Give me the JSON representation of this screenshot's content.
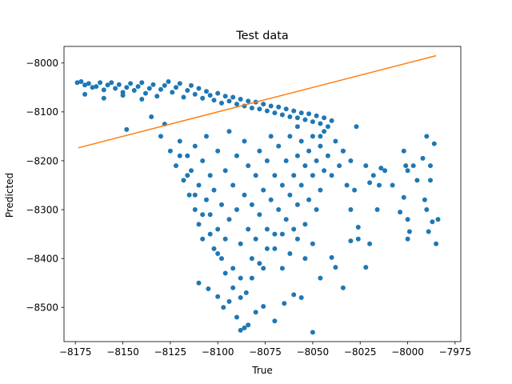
{
  "chart_data": {
    "type": "scatter",
    "title": "Test data",
    "xlabel": "True",
    "ylabel": "Predicted",
    "xlim": [
      -8181,
      -7972
    ],
    "ylim": [
      -8570,
      -7966
    ],
    "x_ticks": [
      -8175,
      -8150,
      -8125,
      -8100,
      -8075,
      -8050,
      -8025,
      -8000,
      -7975
    ],
    "x_tick_labels": [
      "−8175",
      "−8150",
      "−8125",
      "−8100",
      "−8075",
      "−8050",
      "−8025",
      "−8000",
      "−7975"
    ],
    "y_ticks": [
      -8500,
      -8400,
      -8300,
      -8200,
      -8100,
      -8000
    ],
    "y_tick_labels": [
      "−8500",
      "−8400",
      "−8300",
      "−8200",
      "−8100",
      "−8000"
    ],
    "grid": false,
    "series": [
      {
        "kind": "points",
        "color": "#1f77b4",
        "points": [
          [
            -8174,
            -8040
          ],
          [
            -8172,
            -8038
          ],
          [
            -8170,
            -8045
          ],
          [
            -8168,
            -8042
          ],
          [
            -8166,
            -8050
          ],
          [
            -8164,
            -8048
          ],
          [
            -8162,
            -8040
          ],
          [
            -8160,
            -8055
          ],
          [
            -8158,
            -8045
          ],
          [
            -8156,
            -8040
          ],
          [
            -8154,
            -8052
          ],
          [
            -8152,
            -8044
          ],
          [
            -8150,
            -8060
          ],
          [
            -8148,
            -8050
          ],
          [
            -8146,
            -8042
          ],
          [
            -8144,
            -8056
          ],
          [
            -8142,
            -8048
          ],
          [
            -8140,
            -8040
          ],
          [
            -8138,
            -8062
          ],
          [
            -8136,
            -8052
          ],
          [
            -8134,
            -8044
          ],
          [
            -8132,
            -8068
          ],
          [
            -8130,
            -8054
          ],
          [
            -8128,
            -8046
          ],
          [
            -8126,
            -8038
          ],
          [
            -8124,
            -8060
          ],
          [
            -8122,
            -8050
          ],
          [
            -8120,
            -8042
          ],
          [
            -8118,
            -8070
          ],
          [
            -8116,
            -8056
          ],
          [
            -8114,
            -8046
          ],
          [
            -8112,
            -8064
          ],
          [
            -8110,
            -8052
          ],
          [
            -8108,
            -8072
          ],
          [
            -8106,
            -8058
          ],
          [
            -8104,
            -8066
          ],
          [
            -8102,
            -8076
          ],
          [
            -8100,
            -8062
          ],
          [
            -8098,
            -8082
          ],
          [
            -8096,
            -8068
          ],
          [
            -8094,
            -8078
          ],
          [
            -8092,
            -8070
          ],
          [
            -8090,
            -8084
          ],
          [
            -8088,
            -8074
          ],
          [
            -8086,
            -8088
          ],
          [
            -8084,
            -8078
          ],
          [
            -8082,
            -8092
          ],
          [
            -8080,
            -8080
          ],
          [
            -8078,
            -8094
          ],
          [
            -8076,
            -8084
          ],
          [
            -8074,
            -8098
          ],
          [
            -8072,
            -8088
          ],
          [
            -8070,
            -8102
          ],
          [
            -8068,
            -8090
          ],
          [
            -8066,
            -8106
          ],
          [
            -8064,
            -8094
          ],
          [
            -8062,
            -8110
          ],
          [
            -8060,
            -8098
          ],
          [
            -8058,
            -8112
          ],
          [
            -8056,
            -8102
          ],
          [
            -8054,
            -8116
          ],
          [
            -8052,
            -8104
          ],
          [
            -8050,
            -8120
          ],
          [
            -8048,
            -8108
          ],
          [
            -8046,
            -8124
          ],
          [
            -8044,
            -8112
          ],
          [
            -8042,
            -8130
          ],
          [
            -8040,
            -8118
          ],
          [
            -8170,
            -8064
          ],
          [
            -8160,
            -8072
          ],
          [
            -8150,
            -8066
          ],
          [
            -8140,
            -8074
          ],
          [
            -8148,
            -8136
          ],
          [
            -8135,
            -8110
          ],
          [
            -8130,
            -8150
          ],
          [
            -8128,
            -8125
          ],
          [
            -8125,
            -8180
          ],
          [
            -8122,
            -8210
          ],
          [
            -8120,
            -8160
          ],
          [
            -8118,
            -8240
          ],
          [
            -8116,
            -8190
          ],
          [
            -8115,
            -8270
          ],
          [
            -8114,
            -8220
          ],
          [
            -8112,
            -8300
          ],
          [
            -8112,
            -8170
          ],
          [
            -8110,
            -8250
          ],
          [
            -8110,
            -8330
          ],
          [
            -8108,
            -8200
          ],
          [
            -8108,
            -8360
          ],
          [
            -8106,
            -8280
          ],
          [
            -8106,
            -8150
          ],
          [
            -8104,
            -8310
          ],
          [
            -8104,
            -8230
          ],
          [
            -8102,
            -8380
          ],
          [
            -8102,
            -8260
          ],
          [
            -8100,
            -8340
          ],
          [
            -8100,
            -8180
          ],
          [
            -8098,
            -8290
          ],
          [
            -8098,
            -8400
          ],
          [
            -8096,
            -8220
          ],
          [
            -8096,
            -8360
          ],
          [
            -8094,
            -8320
          ],
          [
            -8094,
            -8140
          ],
          [
            -8092,
            -8250
          ],
          [
            -8092,
            -8420
          ],
          [
            -8090,
            -8300
          ],
          [
            -8090,
            -8190
          ],
          [
            -8088,
            -8370
          ],
          [
            -8088,
            -8440
          ],
          [
            -8086,
            -8270
          ],
          [
            -8086,
            -8160
          ],
          [
            -8084,
            -8340
          ],
          [
            -8084,
            -8210
          ],
          [
            -8082,
            -8400
          ],
          [
            -8082,
            -8290
          ],
          [
            -8080,
            -8230
          ],
          [
            -8080,
            -8360
          ],
          [
            -8078,
            -8180
          ],
          [
            -8078,
            -8310
          ],
          [
            -8076,
            -8260
          ],
          [
            -8076,
            -8420
          ],
          [
            -8074,
            -8200
          ],
          [
            -8074,
            -8340
          ],
          [
            -8072,
            -8150
          ],
          [
            -8072,
            -8280
          ],
          [
            -8070,
            -8380
          ],
          [
            -8070,
            -8230
          ],
          [
            -8068,
            -8300
          ],
          [
            -8068,
            -8170
          ],
          [
            -8066,
            -8250
          ],
          [
            -8066,
            -8350
          ],
          [
            -8064,
            -8200
          ],
          [
            -8064,
            -8320
          ],
          [
            -8062,
            -8270
          ],
          [
            -8062,
            -8150
          ],
          [
            -8060,
            -8230
          ],
          [
            -8060,
            -8340
          ],
          [
            -8058,
            -8190
          ],
          [
            -8058,
            -8290
          ],
          [
            -8056,
            -8250
          ],
          [
            -8056,
            -8160
          ],
          [
            -8054,
            -8210
          ],
          [
            -8054,
            -8330
          ],
          [
            -8052,
            -8180
          ],
          [
            -8052,
            -8280
          ],
          [
            -8050,
            -8230
          ],
          [
            -8050,
            -8150
          ],
          [
            -8048,
            -8200
          ],
          [
            -8048,
            -8300
          ],
          [
            -8046,
            -8170
          ],
          [
            -8046,
            -8260
          ],
          [
            -8044,
            -8220
          ],
          [
            -8044,
            -8140
          ],
          [
            -8042,
            -8190
          ],
          [
            -8040,
            -8230
          ],
          [
            -8038,
            -8160
          ],
          [
            -8036,
            -8210
          ],
          [
            -8034,
            -8180
          ],
          [
            -8032,
            -8250
          ],
          [
            -8030,
            -8200
          ],
          [
            -8030,
            -8300
          ],
          [
            -8028,
            -8260
          ],
          [
            -8120,
            -8190
          ],
          [
            -8116,
            -8230
          ],
          [
            -8112,
            -8270
          ],
          [
            -8108,
            -8310
          ],
          [
            -8104,
            -8350
          ],
          [
            -8100,
            -8390
          ],
          [
            -8096,
            -8430
          ],
          [
            -8092,
            -8460
          ],
          [
            -8088,
            -8480
          ],
          [
            -8085,
            -8470
          ],
          [
            -8082,
            -8440
          ],
          [
            -8078,
            -8410
          ],
          [
            -8074,
            -8380
          ],
          [
            -8070,
            -8350
          ],
          [
            -8066,
            -8420
          ],
          [
            -8062,
            -8390
          ],
          [
            -8058,
            -8360
          ],
          [
            -8054,
            -8400
          ],
          [
            -8050,
            -8370
          ],
          [
            -8110,
            -8450
          ],
          [
            -8105,
            -8462
          ],
          [
            -8100,
            -8478
          ],
          [
            -8097,
            -8500
          ],
          [
            -8094,
            -8488
          ],
          [
            -8090,
            -8520
          ],
          [
            -8088,
            -8547
          ],
          [
            -8086,
            -8542
          ],
          [
            -8084,
            -8536
          ],
          [
            -8080,
            -8510
          ],
          [
            -8076,
            -8498
          ],
          [
            -8070,
            -8528
          ],
          [
            -8065,
            -8492
          ],
          [
            -8060,
            -8474
          ],
          [
            -8056,
            -8480
          ],
          [
            -8050,
            -8551
          ],
          [
            -8046,
            -8440
          ],
          [
            -8040,
            -8398
          ],
          [
            -8038,
            -8418
          ],
          [
            -8034,
            -8460
          ],
          [
            -8030,
            -8364
          ],
          [
            -8026,
            -8336
          ],
          [
            -8022,
            -8418
          ],
          [
            -8020,
            -8370
          ],
          [
            -8058,
            -8130
          ],
          [
            -8046,
            -8150
          ],
          [
            -8034,
            -8180
          ],
          [
            -8027,
            -8130
          ],
          [
            -8026,
            -8360
          ],
          [
            -8022,
            -8210
          ],
          [
            -8020,
            -8245
          ],
          [
            -8018,
            -8230
          ],
          [
            -8014,
            -8215
          ],
          [
            -8012,
            -8220
          ],
          [
            -8015,
            -8250
          ],
          [
            -8016,
            -8300
          ],
          [
            -8008,
            -8250
          ],
          [
            -8002,
            -8180
          ],
          [
            -8001,
            -8210
          ],
          [
            -8000,
            -8220
          ],
          [
            -8002,
            -8275
          ],
          [
            -8004,
            -8305
          ],
          [
            -8000,
            -8320
          ],
          [
            -7999,
            -8345
          ],
          [
            -8000,
            -8360
          ],
          [
            -7997,
            -8210
          ],
          [
            -7995,
            -8240
          ],
          [
            -7992,
            -8195
          ],
          [
            -7990,
            -8150
          ],
          [
            -7988,
            -8210
          ],
          [
            -7991,
            -8280
          ],
          [
            -7990,
            -8300
          ],
          [
            -7987,
            -8325
          ],
          [
            -7988,
            -8240
          ],
          [
            -7986,
            -8165
          ],
          [
            -7985,
            -8370
          ],
          [
            -7984,
            -8320
          ],
          [
            -7989,
            -8345
          ]
        ]
      },
      {
        "kind": "line",
        "color": "#ff7f0e",
        "points": [
          [
            -8173.5,
            -8173.5
          ],
          [
            -7985,
            -7985
          ]
        ]
      }
    ]
  }
}
